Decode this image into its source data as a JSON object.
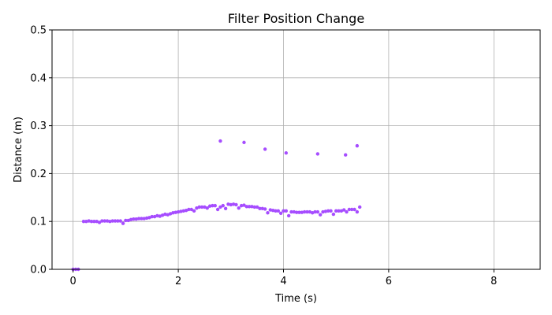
{
  "chart_data": {
    "type": "scatter",
    "title": "Filter Position Change",
    "xlabel": "Time (s)",
    "ylabel": "Distance (m)",
    "xlim": [
      -0.4,
      8.88
    ],
    "ylim": [
      0,
      0.5
    ],
    "xticks": [
      0,
      2,
      4,
      6,
      8
    ],
    "yticks": [
      0.0,
      0.1,
      0.2,
      0.3,
      0.4,
      0.5
    ],
    "xtick_labels": [
      "0",
      "2",
      "4",
      "6",
      "8"
    ],
    "ytick_labels": [
      "0.0",
      "0.1",
      "0.2",
      "0.3",
      "0.4",
      "0.5"
    ],
    "grid": true,
    "marker_color": "#a64dff",
    "series": [
      {
        "x": [
          0.0,
          0.05,
          0.1,
          0.2,
          0.25,
          0.3,
          0.35,
          0.4,
          0.45,
          0.5,
          0.55,
          0.6,
          0.65,
          0.7,
          0.75,
          0.8,
          0.85,
          0.9,
          0.95,
          1.0,
          1.05,
          1.1,
          1.15,
          1.2,
          1.25,
          1.3,
          1.35,
          1.4,
          1.45,
          1.5,
          1.55,
          1.6,
          1.65,
          1.7,
          1.75,
          1.8,
          1.85,
          1.9,
          1.95,
          2.0,
          2.05,
          2.1,
          2.15,
          2.2,
          2.25,
          2.3,
          2.35,
          2.4,
          2.45,
          2.5,
          2.55,
          2.6,
          2.65,
          2.7,
          2.75,
          2.8,
          2.85,
          2.9,
          2.95,
          3.0,
          3.05,
          3.1,
          3.15,
          3.2,
          3.25,
          3.3,
          3.35,
          3.4,
          3.45,
          3.5,
          3.55,
          3.6,
          3.65,
          3.7,
          3.75,
          3.8,
          3.85,
          3.9,
          3.95,
          4.0,
          4.05,
          4.1,
          4.15,
          4.2,
          4.25,
          4.3,
          4.35,
          4.4,
          4.45,
          4.5,
          4.55,
          4.6,
          4.65,
          4.7,
          4.75,
          4.8,
          4.85,
          4.9,
          4.95,
          5.0,
          5.05,
          5.1,
          5.15,
          5.2,
          5.25,
          5.3,
          5.35,
          5.4,
          5.45,
          2.8,
          3.25,
          3.65,
          4.05,
          4.65,
          5.18,
          5.4
        ],
        "y": [
          0.0,
          0.0,
          0.0,
          0.1,
          0.1,
          0.101,
          0.1,
          0.1,
          0.1,
          0.098,
          0.101,
          0.101,
          0.101,
          0.1,
          0.101,
          0.101,
          0.101,
          0.101,
          0.096,
          0.102,
          0.102,
          0.104,
          0.105,
          0.105,
          0.106,
          0.106,
          0.106,
          0.107,
          0.108,
          0.11,
          0.11,
          0.112,
          0.111,
          0.113,
          0.115,
          0.114,
          0.116,
          0.118,
          0.119,
          0.12,
          0.121,
          0.122,
          0.123,
          0.125,
          0.125,
          0.122,
          0.128,
          0.13,
          0.13,
          0.13,
          0.128,
          0.132,
          0.133,
          0.133,
          0.125,
          0.13,
          0.133,
          0.127,
          0.136,
          0.135,
          0.136,
          0.135,
          0.128,
          0.133,
          0.134,
          0.131,
          0.131,
          0.131,
          0.13,
          0.13,
          0.127,
          0.127,
          0.126,
          0.118,
          0.124,
          0.123,
          0.122,
          0.122,
          0.117,
          0.122,
          0.122,
          0.112,
          0.12,
          0.12,
          0.119,
          0.119,
          0.119,
          0.12,
          0.12,
          0.12,
          0.118,
          0.12,
          0.12,
          0.114,
          0.12,
          0.121,
          0.122,
          0.122,
          0.115,
          0.122,
          0.122,
          0.122,
          0.124,
          0.12,
          0.125,
          0.125,
          0.125,
          0.12,
          0.13,
          0.268,
          0.265,
          0.251,
          0.243,
          0.241,
          0.239,
          0.258
        ]
      }
    ]
  }
}
